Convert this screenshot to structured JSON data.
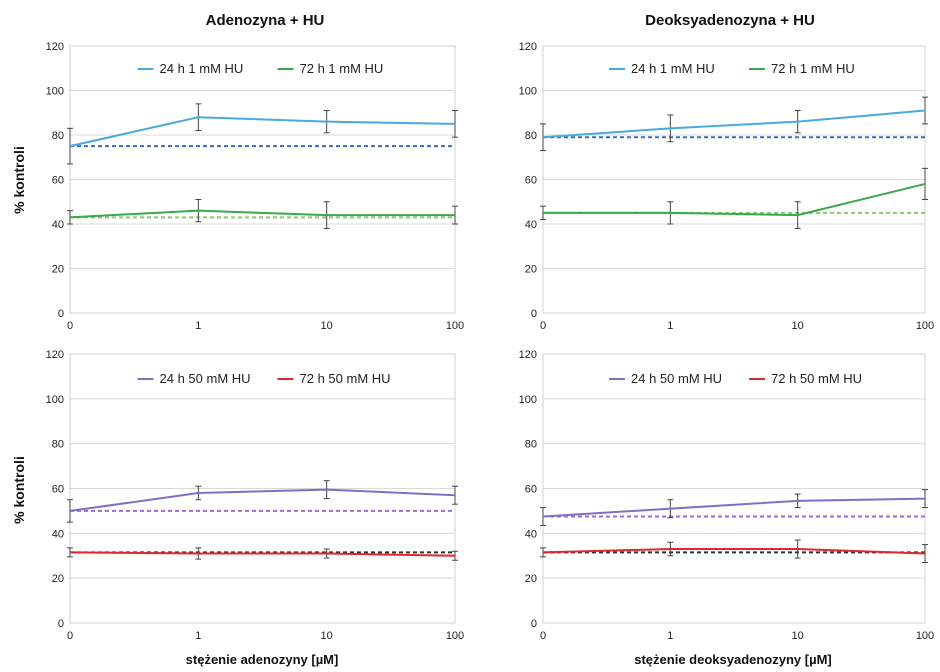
{
  "columns": [
    "Adenozyna + HU",
    "Deoksyadenozyna + HU"
  ],
  "y_axis_label": "% kontroli",
  "x_axis_labels": [
    "stężenie adenozyny [µM]",
    "stężenie deoksyadenozyny [µM]"
  ],
  "colors": {
    "24h_1mM": "#4aa8e0",
    "72h_1mM": "#3aa84a",
    "24h_50mM": "#8070c4",
    "72h_50mM": "#e02828",
    "dash_24h_1mM": "#3a6cc0",
    "dash_72h_1mM": "#8cc870",
    "dash_24h_50mM": "#9a6ae0",
    "dash_72h_50mM": "#303030"
  },
  "chart_data": [
    {
      "type": "line",
      "title": "Adenozyna + HU",
      "xlabel": "",
      "ylabel": "% kontroli",
      "categories": [
        "0",
        "1",
        "10",
        "100"
      ],
      "ylim": [
        0,
        120
      ],
      "yticks": [
        0,
        20,
        40,
        60,
        80,
        100,
        120
      ],
      "grid": true,
      "legend": "top",
      "series": [
        {
          "name": "24 h 1 mM HU",
          "color": "#4aa8e0",
          "values": [
            75,
            88,
            86,
            85
          ],
          "errors": [
            8,
            6,
            5,
            6
          ]
        },
        {
          "name": "72 h 1 mM HU",
          "color": "#3aa84a",
          "values": [
            43,
            46,
            44,
            44
          ],
          "errors": [
            3,
            5,
            6,
            4
          ]
        }
      ],
      "reference_lines": [
        {
          "value": 75,
          "color": "#3a6cc0",
          "style": "dashed"
        },
        {
          "value": 43,
          "color": "#8cc870",
          "style": "dashed"
        }
      ]
    },
    {
      "type": "line",
      "title": "Deoksyadenozyna + HU",
      "xlabel": "",
      "ylabel": "",
      "categories": [
        "0",
        "1",
        "10",
        "100"
      ],
      "ylim": [
        0,
        120
      ],
      "yticks": [
        0,
        20,
        40,
        60,
        80,
        100,
        120
      ],
      "grid": true,
      "legend": "top",
      "series": [
        {
          "name": "24 h 1 mM HU",
          "color": "#4aa8e0",
          "values": [
            79,
            83,
            86,
            91
          ],
          "errors": [
            6,
            6,
            5,
            6
          ]
        },
        {
          "name": "72 h 1 mM HU",
          "color": "#3aa84a",
          "values": [
            45,
            45,
            44,
            58
          ],
          "errors": [
            3,
            5,
            6,
            7
          ]
        }
      ],
      "reference_lines": [
        {
          "value": 79,
          "color": "#3a6cc0",
          "style": "dashed"
        },
        {
          "value": 45,
          "color": "#8cc870",
          "style": "dashed"
        }
      ]
    },
    {
      "type": "line",
      "title": "",
      "xlabel": "stężenie adenozyny [µM]",
      "ylabel": "% kontroli",
      "categories": [
        "0",
        "1",
        "10",
        "100"
      ],
      "ylim": [
        0,
        120
      ],
      "yticks": [
        0,
        20,
        40,
        60,
        80,
        100,
        120
      ],
      "grid": true,
      "legend": "top",
      "series": [
        {
          "name": "24 h 50 mM HU",
          "color": "#8070c4",
          "values": [
            50,
            58,
            59.5,
            57
          ],
          "errors": [
            5,
            3,
            4,
            4
          ]
        },
        {
          "name": "72 h 50 mM HU",
          "color": "#e02828",
          "values": [
            31.5,
            31,
            31,
            30
          ],
          "errors": [
            2,
            2.5,
            2,
            2
          ]
        }
      ],
      "reference_lines": [
        {
          "value": 50,
          "color": "#9a6ae0",
          "style": "dashed"
        },
        {
          "value": 31.5,
          "color": "#303030",
          "style": "dashed"
        }
      ]
    },
    {
      "type": "line",
      "title": "",
      "xlabel": "stężenie deoksyadenozyny [µM]",
      "ylabel": "",
      "categories": [
        "0",
        "1",
        "10",
        "100"
      ],
      "ylim": [
        0,
        120
      ],
      "yticks": [
        0,
        20,
        40,
        60,
        80,
        100,
        120
      ],
      "grid": true,
      "legend": "top",
      "series": [
        {
          "name": "24 h 50 mM HU",
          "color": "#8070c4",
          "values": [
            47.5,
            51,
            54.5,
            55.5
          ],
          "errors": [
            4,
            4,
            3,
            4
          ]
        },
        {
          "name": "72 h 50 mM HU",
          "color": "#e02828",
          "values": [
            31.5,
            33,
            33,
            31
          ],
          "errors": [
            2,
            3,
            4,
            4
          ]
        }
      ],
      "reference_lines": [
        {
          "value": 47.5,
          "color": "#9a6ae0",
          "style": "dashed"
        },
        {
          "value": 31.5,
          "color": "#303030",
          "style": "dashed"
        }
      ]
    }
  ]
}
